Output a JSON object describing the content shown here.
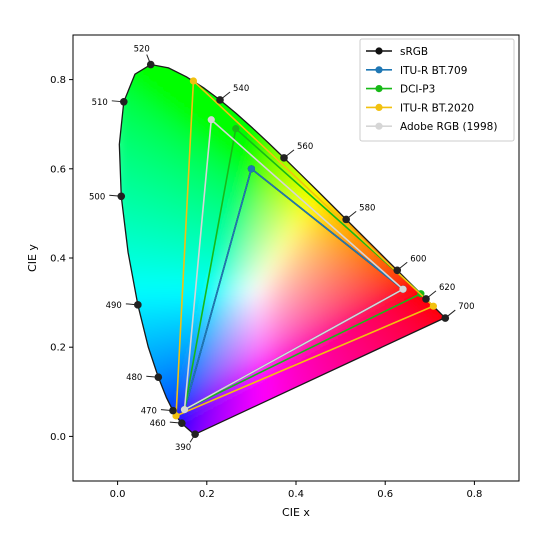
{
  "chart_data": {
    "type": "scatter",
    "title": "",
    "xlabel": "CIE x",
    "ylabel": "CIE y",
    "xlim": [
      -0.1,
      0.9
    ],
    "ylim": [
      -0.1,
      0.9
    ],
    "xticks": [
      0.0,
      0.2,
      0.4,
      0.6,
      0.8
    ],
    "yticks": [
      0.0,
      0.2,
      0.4,
      0.6,
      0.8
    ],
    "xtick_labels": [
      "0.0",
      "0.2",
      "0.4",
      "0.6",
      "0.8"
    ],
    "ytick_labels": [
      "0.0",
      "0.2",
      "0.4",
      "0.6",
      "0.8"
    ],
    "grid": false,
    "legend_position": "top-right",
    "spectral_locus": [
      [
        0.1741,
        0.005
      ],
      [
        0.1738,
        0.0049
      ],
      [
        0.1736,
        0.0049
      ],
      [
        0.1733,
        0.0048
      ],
      [
        0.173,
        0.0048
      ],
      [
        0.1726,
        0.0048
      ],
      [
        0.1721,
        0.0048
      ],
      [
        0.1714,
        0.0051
      ],
      [
        0.1703,
        0.0058
      ],
      [
        0.1689,
        0.0069
      ],
      [
        0.1669,
        0.0086
      ],
      [
        0.1644,
        0.0109
      ],
      [
        0.1611,
        0.0138
      ],
      [
        0.1566,
        0.0177
      ],
      [
        0.151,
        0.0227
      ],
      [
        0.144,
        0.0297
      ],
      [
        0.1355,
        0.0399
      ],
      [
        0.1241,
        0.0578
      ],
      [
        0.1096,
        0.0868
      ],
      [
        0.0913,
        0.1327
      ],
      [
        0.0687,
        0.2007
      ],
      [
        0.0454,
        0.295
      ],
      [
        0.0235,
        0.4127
      ],
      [
        0.0082,
        0.5384
      ],
      [
        0.0039,
        0.6548
      ],
      [
        0.0139,
        0.7502
      ],
      [
        0.0389,
        0.812
      ],
      [
        0.0743,
        0.8338
      ],
      [
        0.1142,
        0.8262
      ],
      [
        0.1547,
        0.8059
      ],
      [
        0.1929,
        0.7816
      ],
      [
        0.2296,
        0.7543
      ],
      [
        0.2658,
        0.7243
      ],
      [
        0.3016,
        0.6923
      ],
      [
        0.3373,
        0.6589
      ],
      [
        0.3731,
        0.6245
      ],
      [
        0.4087,
        0.5896
      ],
      [
        0.4441,
        0.5547
      ],
      [
        0.4788,
        0.5202
      ],
      [
        0.5125,
        0.4866
      ],
      [
        0.5448,
        0.4544
      ],
      [
        0.5752,
        0.4242
      ],
      [
        0.6029,
        0.3965
      ],
      [
        0.627,
        0.3725
      ],
      [
        0.6482,
        0.3514
      ],
      [
        0.6658,
        0.334
      ],
      [
        0.6801,
        0.3197
      ],
      [
        0.6915,
        0.3083
      ],
      [
        0.7006,
        0.2993
      ],
      [
        0.7079,
        0.292
      ],
      [
        0.714,
        0.2859
      ],
      [
        0.719,
        0.2809
      ],
      [
        0.723,
        0.277
      ],
      [
        0.726,
        0.274
      ],
      [
        0.7283,
        0.2717
      ],
      [
        0.73,
        0.27
      ],
      [
        0.7311,
        0.2689
      ],
      [
        0.732,
        0.268
      ],
      [
        0.7327,
        0.2673
      ],
      [
        0.7334,
        0.2666
      ],
      [
        0.734,
        0.266
      ]
    ],
    "wavelength_markers": [
      {
        "label": "390",
        "x": 0.1738,
        "y": 0.0049,
        "text_dir": "below"
      },
      {
        "label": "460",
        "x": 0.144,
        "y": 0.0297,
        "text_dir": "left"
      },
      {
        "label": "470",
        "x": 0.1241,
        "y": 0.0578,
        "text_dir": "left"
      },
      {
        "label": "480",
        "x": 0.0913,
        "y": 0.1327,
        "text_dir": "left"
      },
      {
        "label": "490",
        "x": 0.0454,
        "y": 0.295,
        "text_dir": "left"
      },
      {
        "label": "500",
        "x": 0.0082,
        "y": 0.5384,
        "text_dir": "left"
      },
      {
        "label": "510",
        "x": 0.0139,
        "y": 0.7502,
        "text_dir": "left"
      },
      {
        "label": "520",
        "x": 0.0743,
        "y": 0.8338,
        "text_dir": "above"
      },
      {
        "label": "540",
        "x": 0.2296,
        "y": 0.7543,
        "text_dir": "right"
      },
      {
        "label": "560",
        "x": 0.3731,
        "y": 0.6245,
        "text_dir": "right"
      },
      {
        "label": "580",
        "x": 0.5125,
        "y": 0.4866,
        "text_dir": "right"
      },
      {
        "label": "600",
        "x": 0.627,
        "y": 0.3725,
        "text_dir": "right"
      },
      {
        "label": "620",
        "x": 0.6915,
        "y": 0.3083,
        "text_dir": "right"
      },
      {
        "label": "700",
        "x": 0.7347,
        "y": 0.2653,
        "text_dir": "right"
      }
    ],
    "series": [
      {
        "name": "sRGB",
        "color": "#111111",
        "points": [
          [
            0.64,
            0.33
          ],
          [
            0.3,
            0.6
          ],
          [
            0.15,
            0.06
          ],
          [
            0.64,
            0.33
          ]
        ]
      },
      {
        "name": "ITU-R BT.709",
        "color": "#1f77b4",
        "points": [
          [
            0.64,
            0.33
          ],
          [
            0.3,
            0.6
          ],
          [
            0.15,
            0.06
          ],
          [
            0.64,
            0.33
          ]
        ]
      },
      {
        "name": "DCI-P3",
        "color": "#17b917",
        "points": [
          [
            0.68,
            0.32
          ],
          [
            0.265,
            0.69
          ],
          [
            0.15,
            0.06
          ],
          [
            0.68,
            0.32
          ]
        ]
      },
      {
        "name": "ITU-R BT.2020",
        "color": "#f2c10f",
        "points": [
          [
            0.708,
            0.292
          ],
          [
            0.17,
            0.797
          ],
          [
            0.131,
            0.046
          ],
          [
            0.708,
            0.292
          ]
        ]
      },
      {
        "name": "Adobe RGB (1998)",
        "color": "#d6d6d6",
        "points": [
          [
            0.64,
            0.33
          ],
          [
            0.21,
            0.71
          ],
          [
            0.15,
            0.06
          ],
          [
            0.64,
            0.33
          ]
        ]
      }
    ]
  }
}
